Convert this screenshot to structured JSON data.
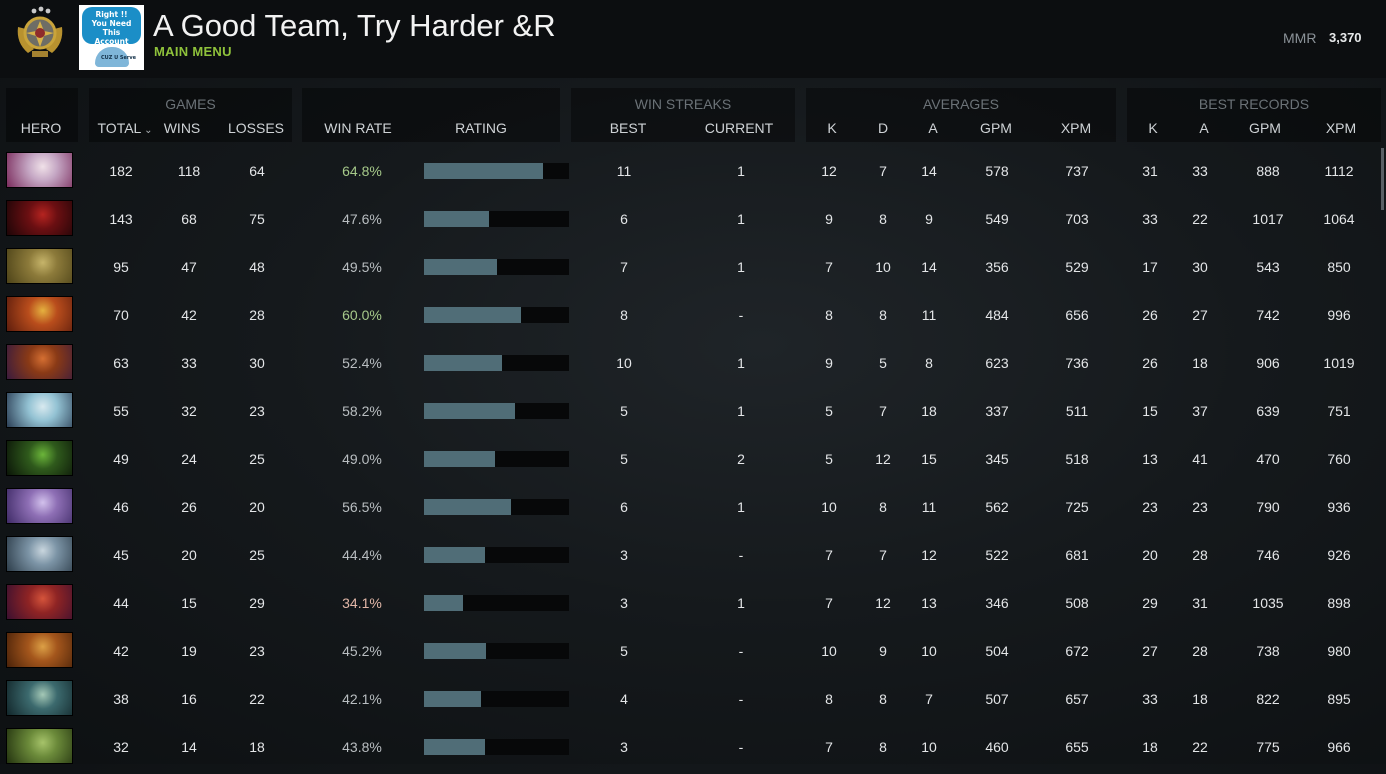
{
  "header": {
    "profile_name": "A Good Team, Try Harder &R",
    "subtitle": "MAIN MENU",
    "mmr_label": "MMR",
    "mmr_value": "3,370",
    "avatar_text_line1": "Right !!",
    "avatar_text_line2": "You Need This",
    "avatar_text_line3": "Account",
    "avatar_tag": "CUZ U Serve"
  },
  "groups": {
    "games": "GAMES",
    "win_streaks": "WIN STREAKS",
    "averages": "AVERAGES",
    "best_records": "BEST RECORDS"
  },
  "columns": {
    "hero": "HERO",
    "total": "TOTAL",
    "wins": "WINS",
    "losses": "LOSSES",
    "win_rate": "WIN RATE",
    "rating": "RATING",
    "best": "BEST",
    "current": "CURRENT",
    "avg_k": "K",
    "avg_d": "D",
    "avg_a": "A",
    "avg_gpm": "GPM",
    "avg_xpm": "XPM",
    "best_k": "K",
    "best_a": "A",
    "best_gpm": "GPM",
    "best_xpm": "XPM"
  },
  "rows": [
    {
      "portrait": [
        "#c5a7c4",
        "#7a2b5c",
        "#f0e1e8"
      ],
      "total": "182",
      "wins": "118",
      "losses": "64",
      "win_rate": "64.8%",
      "rating": 0.82,
      "best": "11",
      "current": "1",
      "avg_k": "12",
      "avg_d": "7",
      "avg_a": "14",
      "avg_gpm": "578",
      "avg_xpm": "737",
      "best_k": "31",
      "best_a": "33",
      "best_gpm": "888",
      "best_xpm": "1112"
    },
    {
      "portrait": [
        "#6b0f12",
        "#1d0507",
        "#b52420"
      ],
      "total": "143",
      "wins": "68",
      "losses": "75",
      "win_rate": "47.6%",
      "rating": 0.45,
      "best": "6",
      "current": "1",
      "avg_k": "9",
      "avg_d": "8",
      "avg_a": "9",
      "avg_gpm": "549",
      "avg_xpm": "703",
      "best_k": "33",
      "best_a": "22",
      "best_gpm": "1017",
      "best_xpm": "1064"
    },
    {
      "portrait": [
        "#8c7a3a",
        "#4d4318",
        "#c6b46a"
      ],
      "total": "95",
      "wins": "47",
      "losses": "48",
      "win_rate": "49.5%",
      "rating": 0.5,
      "best": "7",
      "current": "1",
      "avg_k": "7",
      "avg_d": "10",
      "avg_a": "14",
      "avg_gpm": "356",
      "avg_xpm": "529",
      "best_k": "17",
      "best_a": "30",
      "best_gpm": "543",
      "best_xpm": "850"
    },
    {
      "portrait": [
        "#b94d1c",
        "#5e1d0d",
        "#e5b13f"
      ],
      "total": "70",
      "wins": "42",
      "losses": "28",
      "win_rate": "60.0%",
      "rating": 0.67,
      "best": "8",
      "current": "-",
      "avg_k": "8",
      "avg_d": "8",
      "avg_a": "11",
      "avg_gpm": "484",
      "avg_xpm": "656",
      "best_k": "26",
      "best_a": "27",
      "best_gpm": "742",
      "best_xpm": "996"
    },
    {
      "portrait": [
        "#8a3a16",
        "#3a1b3e",
        "#d56f32"
      ],
      "total": "63",
      "wins": "33",
      "losses": "30",
      "win_rate": "52.4%",
      "rating": 0.54,
      "best": "10",
      "current": "1",
      "avg_k": "9",
      "avg_d": "5",
      "avg_a": "8",
      "avg_gpm": "623",
      "avg_xpm": "736",
      "best_k": "26",
      "best_a": "18",
      "best_gpm": "906",
      "best_xpm": "1019"
    },
    {
      "portrait": [
        "#93c2d3",
        "#2b3e55",
        "#d8e9ef"
      ],
      "total": "55",
      "wins": "32",
      "losses": "23",
      "win_rate": "58.2%",
      "rating": 0.63,
      "best": "5",
      "current": "1",
      "avg_k": "5",
      "avg_d": "7",
      "avg_a": "18",
      "avg_gpm": "337",
      "avg_xpm": "511",
      "best_k": "15",
      "best_a": "37",
      "best_gpm": "639",
      "best_xpm": "751"
    },
    {
      "portrait": [
        "#2f5a1c",
        "#0b1508",
        "#6bb53a"
      ],
      "total": "49",
      "wins": "24",
      "losses": "25",
      "win_rate": "49.0%",
      "rating": 0.49,
      "best": "5",
      "current": "2",
      "avg_k": "5",
      "avg_d": "12",
      "avg_a": "15",
      "avg_gpm": "345",
      "avg_xpm": "518",
      "best_k": "13",
      "best_a": "41",
      "best_gpm": "470",
      "best_xpm": "760"
    },
    {
      "portrait": [
        "#8e6fb5",
        "#3e2a66",
        "#d2c1ec"
      ],
      "total": "46",
      "wins": "26",
      "losses": "20",
      "win_rate": "56.5%",
      "rating": 0.6,
      "best": "6",
      "current": "1",
      "avg_k": "10",
      "avg_d": "8",
      "avg_a": "11",
      "avg_gpm": "562",
      "avg_xpm": "725",
      "best_k": "23",
      "best_a": "23",
      "best_gpm": "790",
      "best_xpm": "936"
    },
    {
      "portrait": [
        "#7c94a6",
        "#2d3d4a",
        "#c9d6de"
      ],
      "total": "45",
      "wins": "20",
      "losses": "25",
      "win_rate": "44.4%",
      "rating": 0.42,
      "best": "3",
      "current": "-",
      "avg_k": "7",
      "avg_d": "7",
      "avg_a": "12",
      "avg_gpm": "522",
      "avg_xpm": "681",
      "best_k": "20",
      "best_a": "28",
      "best_gpm": "746",
      "best_xpm": "926"
    },
    {
      "portrait": [
        "#8f2424",
        "#3b1030",
        "#d5543b"
      ],
      "total": "44",
      "wins": "15",
      "losses": "29",
      "win_rate": "34.1%",
      "rating": 0.27,
      "best": "3",
      "current": "1",
      "avg_k": "7",
      "avg_d": "12",
      "avg_a": "13",
      "avg_gpm": "346",
      "avg_xpm": "508",
      "best_k": "29",
      "best_a": "31",
      "best_gpm": "1035",
      "best_xpm": "898"
    },
    {
      "portrait": [
        "#a4561c",
        "#4a2209",
        "#dca046"
      ],
      "total": "42",
      "wins": "19",
      "losses": "23",
      "win_rate": "45.2%",
      "rating": 0.43,
      "best": "5",
      "current": "-",
      "avg_k": "10",
      "avg_d": "9",
      "avg_a": "10",
      "avg_gpm": "504",
      "avg_xpm": "672",
      "best_k": "27",
      "best_a": "28",
      "best_gpm": "738",
      "best_xpm": "980"
    },
    {
      "portrait": [
        "#3c6a6e",
        "#12262a",
        "#a4c8b6"
      ],
      "total": "38",
      "wins": "16",
      "losses": "22",
      "win_rate": "42.1%",
      "rating": 0.39,
      "best": "4",
      "current": "-",
      "avg_k": "8",
      "avg_d": "8",
      "avg_a": "7",
      "avg_gpm": "507",
      "avg_xpm": "657",
      "best_k": "33",
      "best_a": "18",
      "best_gpm": "822",
      "best_xpm": "895"
    },
    {
      "portrait": [
        "#6b8a3a",
        "#23330f",
        "#a6c36a"
      ],
      "total": "32",
      "wins": "14",
      "losses": "18",
      "win_rate": "43.8%",
      "rating": 0.42,
      "best": "3",
      "current": "-",
      "avg_k": "7",
      "avg_d": "8",
      "avg_a": "10",
      "avg_gpm": "460",
      "avg_xpm": "655",
      "best_k": "18",
      "best_a": "22",
      "best_gpm": "775",
      "best_xpm": "966"
    }
  ]
}
